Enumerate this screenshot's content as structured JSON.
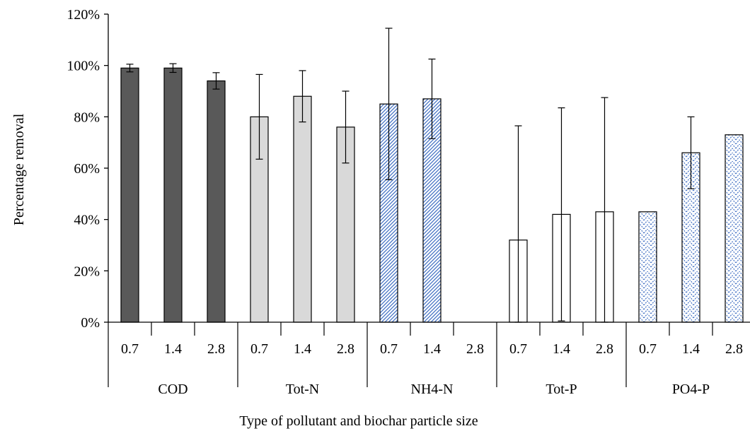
{
  "chart_data": {
    "type": "bar",
    "xlabel": "Type of pollutant and biochar particle size",
    "ylabel": "Percentage removal",
    "ylim": [
      0,
      1.2
    ],
    "y_ticks": [
      0,
      0.2,
      0.4,
      0.6,
      0.8,
      1.0,
      1.2
    ],
    "y_tick_labels": [
      "0%",
      "20%",
      "40%",
      "60%",
      "80%",
      "100%",
      "120%"
    ],
    "grid": false,
    "groups": [
      {
        "name": "COD",
        "sizes": [
          "0.7",
          "1.4",
          "2.8"
        ],
        "values": [
          0.99,
          0.99,
          0.94
        ],
        "errors": [
          0.015,
          0.017,
          0.032
        ],
        "fill": "#595959",
        "pattern": "solid"
      },
      {
        "name": "Tot-N",
        "sizes": [
          "0.7",
          "1.4",
          "2.8"
        ],
        "values": [
          0.8,
          0.88,
          0.76
        ],
        "errors": [
          0.165,
          0.1,
          0.14
        ],
        "fill": "#d9d9d9",
        "pattern": "solid"
      },
      {
        "name": "NH4-N",
        "sizes": [
          "0.7",
          "1.4",
          "2.8"
        ],
        "values": [
          0.85,
          0.87,
          0.0
        ],
        "errors": [
          0.295,
          0.155,
          0.0
        ],
        "fill": "#4472c4",
        "pattern": "diagonal"
      },
      {
        "name": "Tot-P",
        "sizes": [
          "0.7",
          "1.4",
          "2.8"
        ],
        "values": [
          0.32,
          0.42,
          0.43
        ],
        "errors": [
          0.445,
          0.415,
          0.445
        ],
        "fill": "#ffffff",
        "pattern": "solid"
      },
      {
        "name": "PO4-P",
        "sizes": [
          "0.7",
          "1.4",
          "2.8"
        ],
        "values": [
          0.43,
          0.66,
          0.73
        ],
        "errors": [
          0.0,
          0.14,
          0.0
        ],
        "fill": "#4472c4",
        "pattern": "zigzag"
      }
    ]
  }
}
